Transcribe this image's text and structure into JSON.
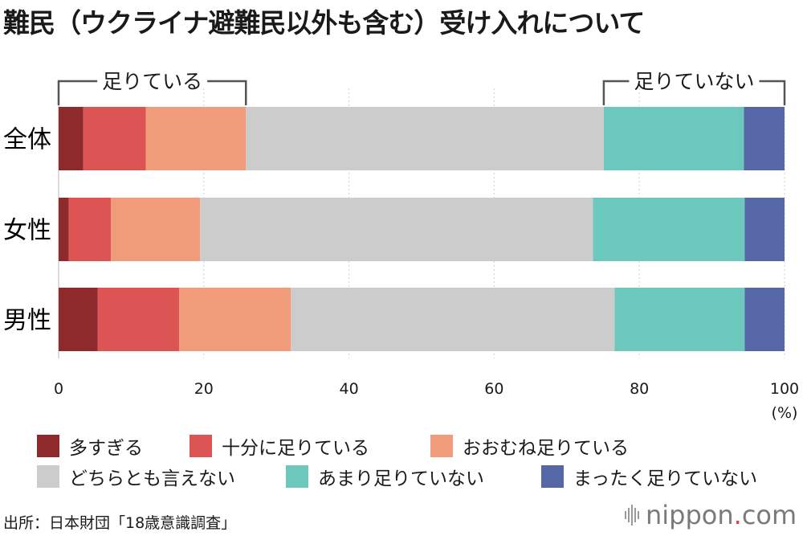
{
  "title": "難民（ウクライナ避難民以外も含む）受け入れについて",
  "brackets": {
    "left_label": "足りている",
    "right_label": "足りていない"
  },
  "chart_data": {
    "type": "bar",
    "orientation": "horizontal",
    "stacked": true,
    "categories": [
      "全体",
      "女性",
      "男性"
    ],
    "series": [
      {
        "name": "多すぎる",
        "color": "#8e2a2b",
        "values": [
          3.4,
          1.4,
          5.4
        ]
      },
      {
        "name": "十分に足りている",
        "color": "#dd5454",
        "values": [
          8.6,
          5.8,
          11.2
        ]
      },
      {
        "name": "おおむね足りている",
        "color": "#f09b79",
        "values": [
          13.8,
          12.3,
          15.4
        ]
      },
      {
        "name": "どちらとも言えない",
        "color": "#cccccc",
        "values": [
          49.3,
          54.1,
          44.6
        ]
      },
      {
        "name": "あまり足りていない",
        "color": "#6cc8bc",
        "values": [
          19.3,
          20.9,
          17.9
        ]
      },
      {
        "name": "まったく足りていない",
        "color": "#5568a5",
        "values": [
          5.6,
          5.5,
          5.5
        ]
      }
    ],
    "xlim": [
      0,
      100
    ],
    "xticks": [
      0,
      20,
      40,
      60,
      80,
      100
    ],
    "xlabel": "(%)",
    "grid": true
  },
  "legend_rows": [
    [
      "多すぎる",
      "十分に足りている",
      "おおむね足りている"
    ],
    [
      "どちらとも言えない",
      "あまり足りていない",
      "まったく足りていない"
    ]
  ],
  "source": "出所：日本財団「18歳意識調査」",
  "logo": {
    "name": "nippon",
    "dot": ".",
    "tld": "com"
  }
}
